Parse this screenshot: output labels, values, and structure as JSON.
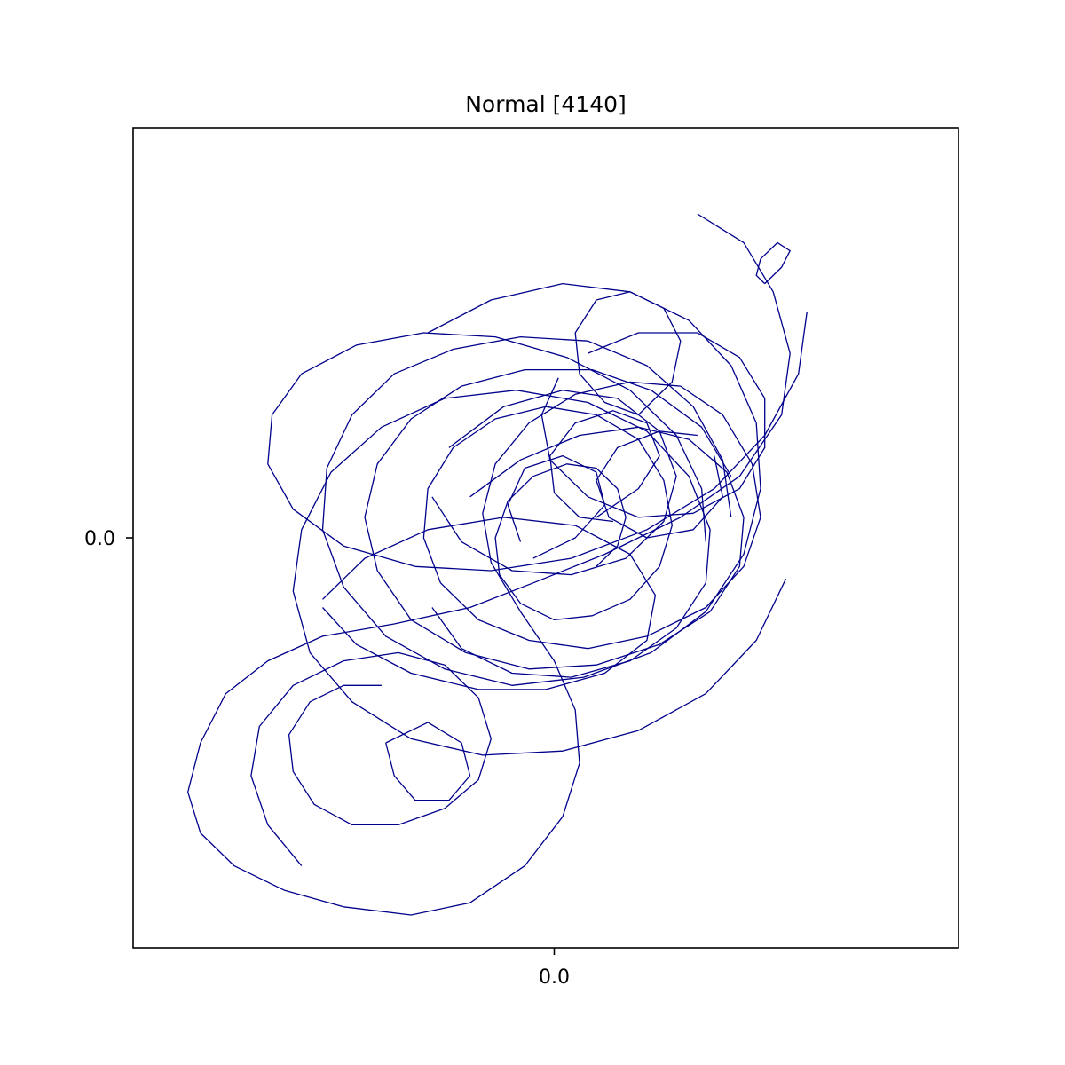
{
  "chart_data": {
    "type": "line",
    "title": "Normal [4140]",
    "xlabel": "",
    "ylabel": "",
    "xlim": [
      -1.0,
      0.96
    ],
    "ylim": [
      -1.0,
      1.0
    ],
    "grid": false,
    "line_color": "#00008b",
    "x_ticks": [
      {
        "value": 0.0,
        "label": "0.0"
      }
    ],
    "y_ticks": [
      {
        "value": 0.0,
        "label": "0.0"
      }
    ],
    "series": [
      {
        "segments": [
          [
            [
              0.34,
              0.79
            ],
            [
              0.45,
              0.72
            ],
            [
              0.52,
              0.6
            ],
            [
              0.56,
              0.45
            ],
            [
              0.54,
              0.3
            ],
            [
              0.44,
              0.15
            ],
            [
              0.3,
              0.05
            ],
            [
              0.12,
              -0.04
            ],
            [
              -0.05,
              -0.11
            ],
            [
              -0.2,
              -0.17
            ],
            [
              -0.38,
              -0.21
            ],
            [
              -0.55,
              -0.24
            ],
            [
              -0.68,
              -0.3
            ],
            [
              -0.78,
              -0.38
            ],
            [
              -0.84,
              -0.5
            ],
            [
              -0.87,
              -0.62
            ],
            [
              -0.84,
              -0.72
            ],
            [
              -0.76,
              -0.8
            ],
            [
              -0.64,
              -0.86
            ],
            [
              -0.5,
              -0.9
            ],
            [
              -0.34,
              -0.92
            ],
            [
              -0.2,
              -0.89
            ],
            [
              -0.07,
              -0.8
            ],
            [
              0.02,
              -0.68
            ],
            [
              0.06,
              -0.55
            ],
            [
              0.05,
              -0.42
            ],
            [
              0.0,
              -0.3
            ],
            [
              -0.08,
              -0.18
            ],
            [
              -0.15,
              -0.06
            ],
            [
              -0.17,
              0.06
            ],
            [
              -0.14,
              0.18
            ],
            [
              -0.06,
              0.28
            ],
            [
              0.05,
              0.35
            ],
            [
              0.18,
              0.38
            ],
            [
              0.3,
              0.37
            ],
            [
              0.4,
              0.3
            ],
            [
              0.47,
              0.18
            ],
            [
              0.49,
              0.05
            ],
            [
              0.45,
              -0.07
            ],
            [
              0.36,
              -0.17
            ],
            [
              0.22,
              -0.24
            ],
            [
              0.08,
              -0.27
            ],
            [
              -0.06,
              -0.25
            ],
            [
              -0.18,
              -0.2
            ],
            [
              -0.27,
              -0.11
            ],
            [
              -0.31,
              0.0
            ],
            [
              -0.3,
              0.12
            ],
            [
              -0.24,
              0.22
            ],
            [
              -0.14,
              0.29
            ],
            [
              -0.02,
              0.32
            ],
            [
              0.1,
              0.3
            ],
            [
              0.2,
              0.24
            ],
            [
              0.26,
              0.14
            ],
            [
              0.28,
              0.03
            ],
            [
              0.25,
              -0.07
            ],
            [
              0.18,
              -0.15
            ],
            [
              0.09,
              -0.19
            ],
            [
              0.0,
              -0.2
            ],
            [
              -0.08,
              -0.16
            ],
            [
              -0.13,
              -0.09
            ],
            [
              -0.14,
              0.0
            ],
            [
              -0.11,
              0.09
            ],
            [
              -0.05,
              0.15
            ],
            [
              0.03,
              0.18
            ],
            [
              0.1,
              0.17
            ],
            [
              0.15,
              0.12
            ],
            [
              0.17,
              0.05
            ],
            [
              0.15,
              -0.02
            ],
            [
              0.1,
              -0.07
            ]
          ],
          [
            [
              -0.2,
              0.1
            ],
            [
              -0.08,
              0.19
            ],
            [
              0.06,
              0.25
            ],
            [
              0.2,
              0.27
            ],
            [
              0.32,
              0.24
            ],
            [
              0.41,
              0.16
            ],
            [
              0.45,
              0.05
            ],
            [
              0.44,
              -0.07
            ],
            [
              0.37,
              -0.18
            ],
            [
              0.25,
              -0.26
            ],
            [
              0.1,
              -0.31
            ],
            [
              -0.06,
              -0.32
            ],
            [
              -0.21,
              -0.28
            ],
            [
              -0.34,
              -0.2
            ],
            [
              -0.42,
              -0.08
            ],
            [
              -0.45,
              0.05
            ],
            [
              -0.42,
              0.18
            ],
            [
              -0.34,
              0.29
            ],
            [
              -0.22,
              0.37
            ],
            [
              -0.07,
              0.41
            ],
            [
              0.09,
              0.41
            ],
            [
              0.23,
              0.36
            ],
            [
              0.35,
              0.27
            ],
            [
              0.42,
              0.15
            ]
          ],
          [
            [
              -0.3,
              0.5
            ],
            [
              -0.15,
              0.58
            ],
            [
              0.02,
              0.62
            ],
            [
              0.18,
              0.6
            ],
            [
              0.32,
              0.53
            ],
            [
              0.42,
              0.42
            ],
            [
              0.48,
              0.28
            ],
            [
              0.49,
              0.12
            ],
            [
              0.45,
              -0.04
            ],
            [
              0.36,
              -0.18
            ],
            [
              0.23,
              -0.28
            ],
            [
              0.07,
              -0.34
            ],
            [
              -0.1,
              -0.36
            ],
            [
              -0.26,
              -0.32
            ],
            [
              -0.4,
              -0.24
            ],
            [
              -0.5,
              -0.12
            ],
            [
              -0.55,
              0.02
            ],
            [
              -0.54,
              0.17
            ],
            [
              -0.48,
              0.3
            ],
            [
              -0.38,
              0.4
            ],
            [
              -0.24,
              0.46
            ],
            [
              -0.08,
              0.49
            ],
            [
              0.08,
              0.48
            ],
            [
              0.22,
              0.42
            ],
            [
              0.33,
              0.32
            ],
            [
              0.4,
              0.19
            ],
            [
              0.42,
              0.05
            ]
          ],
          [
            [
              0.55,
              -0.1
            ],
            [
              0.48,
              -0.25
            ],
            [
              0.36,
              -0.38
            ],
            [
              0.2,
              -0.47
            ],
            [
              0.02,
              -0.52
            ],
            [
              -0.17,
              -0.53
            ],
            [
              -0.34,
              -0.49
            ],
            [
              -0.48,
              -0.4
            ],
            [
              -0.58,
              -0.28
            ],
            [
              -0.62,
              -0.13
            ],
            [
              -0.6,
              0.02
            ],
            [
              -0.53,
              0.16
            ],
            [
              -0.41,
              0.27
            ],
            [
              -0.26,
              0.34
            ],
            [
              -0.09,
              0.36
            ],
            [
              0.08,
              0.33
            ],
            [
              0.22,
              0.26
            ],
            [
              0.32,
              0.15
            ],
            [
              0.37,
              0.02
            ],
            [
              0.36,
              -0.11
            ],
            [
              0.29,
              -0.22
            ],
            [
              0.18,
              -0.3
            ],
            [
              0.04,
              -0.34
            ],
            [
              -0.1,
              -0.33
            ],
            [
              -0.22,
              -0.27
            ],
            [
              -0.29,
              -0.17
            ]
          ],
          [
            [
              0.6,
              0.55
            ],
            [
              0.58,
              0.4
            ],
            [
              0.5,
              0.25
            ],
            [
              0.38,
              0.12
            ],
            [
              0.22,
              0.02
            ],
            [
              0.04,
              -0.05
            ],
            [
              -0.15,
              -0.08
            ],
            [
              -0.33,
              -0.07
            ],
            [
              -0.5,
              -0.02
            ],
            [
              -0.62,
              0.07
            ],
            [
              -0.68,
              0.18
            ],
            [
              -0.67,
              0.3
            ],
            [
              -0.6,
              0.4
            ],
            [
              -0.47,
              0.47
            ],
            [
              -0.31,
              0.5
            ],
            [
              -0.14,
              0.49
            ],
            [
              0.03,
              0.44
            ],
            [
              0.18,
              0.36
            ],
            [
              0.29,
              0.25
            ],
            [
              0.35,
              0.12
            ],
            [
              0.36,
              -0.01
            ]
          ],
          [
            [
              -0.6,
              -0.8
            ],
            [
              -0.68,
              -0.7
            ],
            [
              -0.72,
              -0.58
            ],
            [
              -0.7,
              -0.46
            ],
            [
              -0.62,
              -0.36
            ],
            [
              -0.5,
              -0.3
            ],
            [
              -0.37,
              -0.28
            ],
            [
              -0.26,
              -0.31
            ],
            [
              -0.18,
              -0.39
            ],
            [
              -0.15,
              -0.49
            ],
            [
              -0.18,
              -0.59
            ],
            [
              -0.26,
              -0.66
            ],
            [
              -0.37,
              -0.7
            ],
            [
              -0.48,
              -0.7
            ],
            [
              -0.57,
              -0.65
            ],
            [
              -0.62,
              -0.57
            ],
            [
              -0.63,
              -0.48
            ],
            [
              -0.58,
              -0.4
            ],
            [
              -0.5,
              -0.36
            ],
            [
              -0.41,
              -0.36
            ]
          ],
          [
            [
              0.2,
              0.3
            ],
            [
              0.28,
              0.38
            ],
            [
              0.3,
              0.48
            ],
            [
              0.26,
              0.56
            ],
            [
              0.18,
              0.6
            ],
            [
              0.1,
              0.58
            ],
            [
              0.05,
              0.5
            ],
            [
              0.06,
              0.4
            ],
            [
              0.12,
              0.33
            ],
            [
              0.2,
              0.3
            ]
          ],
          [
            [
              0.5,
              0.62
            ],
            [
              0.54,
              0.66
            ],
            [
              0.56,
              0.7
            ],
            [
              0.53,
              0.72
            ],
            [
              0.49,
              0.68
            ],
            [
              0.48,
              0.64
            ],
            [
              0.5,
              0.62
            ]
          ],
          [
            [
              -0.4,
              -0.5
            ],
            [
              -0.3,
              -0.45
            ],
            [
              -0.22,
              -0.5
            ],
            [
              -0.2,
              -0.58
            ],
            [
              -0.25,
              -0.64
            ],
            [
              -0.33,
              -0.64
            ],
            [
              -0.38,
              -0.58
            ],
            [
              -0.4,
              -0.5
            ]
          ],
          [
            [
              0.1,
              0.05
            ],
            [
              0.2,
              0.12
            ],
            [
              0.25,
              0.2
            ],
            [
              0.22,
              0.28
            ],
            [
              0.14,
              0.31
            ],
            [
              0.05,
              0.28
            ],
            [
              -0.01,
              0.2
            ],
            [
              0.0,
              0.11
            ],
            [
              0.06,
              0.05
            ],
            [
              0.14,
              0.04
            ]
          ],
          [
            [
              -0.05,
              -0.05
            ],
            [
              0.05,
              0.0
            ],
            [
              0.12,
              0.08
            ],
            [
              0.1,
              0.16
            ],
            [
              0.02,
              0.2
            ],
            [
              -0.07,
              0.17
            ],
            [
              -0.11,
              0.08
            ],
            [
              -0.08,
              -0.01
            ]
          ],
          [
            [
              0.38,
              0.2
            ],
            [
              0.4,
              0.1
            ],
            [
              0.33,
              0.02
            ],
            [
              0.22,
              0.0
            ],
            [
              0.13,
              0.05
            ],
            [
              0.1,
              0.14
            ],
            [
              0.15,
              0.22
            ],
            [
              0.25,
              0.26
            ],
            [
              0.34,
              0.25
            ]
          ],
          [
            [
              -0.55,
              -0.15
            ],
            [
              -0.45,
              -0.05
            ],
            [
              -0.3,
              0.02
            ],
            [
              -0.12,
              0.05
            ],
            [
              0.05,
              0.03
            ],
            [
              0.18,
              -0.04
            ],
            [
              0.24,
              -0.14
            ],
            [
              0.22,
              -0.25
            ],
            [
              0.12,
              -0.33
            ],
            [
              -0.02,
              -0.37
            ],
            [
              -0.18,
              -0.37
            ],
            [
              -0.34,
              -0.33
            ],
            [
              -0.47,
              -0.26
            ],
            [
              -0.55,
              -0.17
            ]
          ],
          [
            [
              0.08,
              0.45
            ],
            [
              0.2,
              0.5
            ],
            [
              0.34,
              0.5
            ],
            [
              0.44,
              0.44
            ],
            [
              0.5,
              0.34
            ],
            [
              0.5,
              0.22
            ],
            [
              0.44,
              0.12
            ],
            [
              0.33,
              0.06
            ],
            [
              0.2,
              0.05
            ],
            [
              0.08,
              0.1
            ],
            [
              -0.01,
              0.19
            ],
            [
              -0.03,
              0.3
            ],
            [
              0.01,
              0.39
            ]
          ],
          [
            [
              -0.25,
              0.22
            ],
            [
              -0.12,
              0.32
            ],
            [
              0.02,
              0.36
            ],
            [
              0.15,
              0.34
            ],
            [
              0.25,
              0.26
            ],
            [
              0.29,
              0.15
            ],
            [
              0.26,
              0.04
            ],
            [
              0.17,
              -0.05
            ],
            [
              0.04,
              -0.09
            ],
            [
              -0.1,
              -0.08
            ],
            [
              -0.22,
              -0.01
            ],
            [
              -0.29,
              0.1
            ]
          ]
        ]
      }
    ]
  }
}
